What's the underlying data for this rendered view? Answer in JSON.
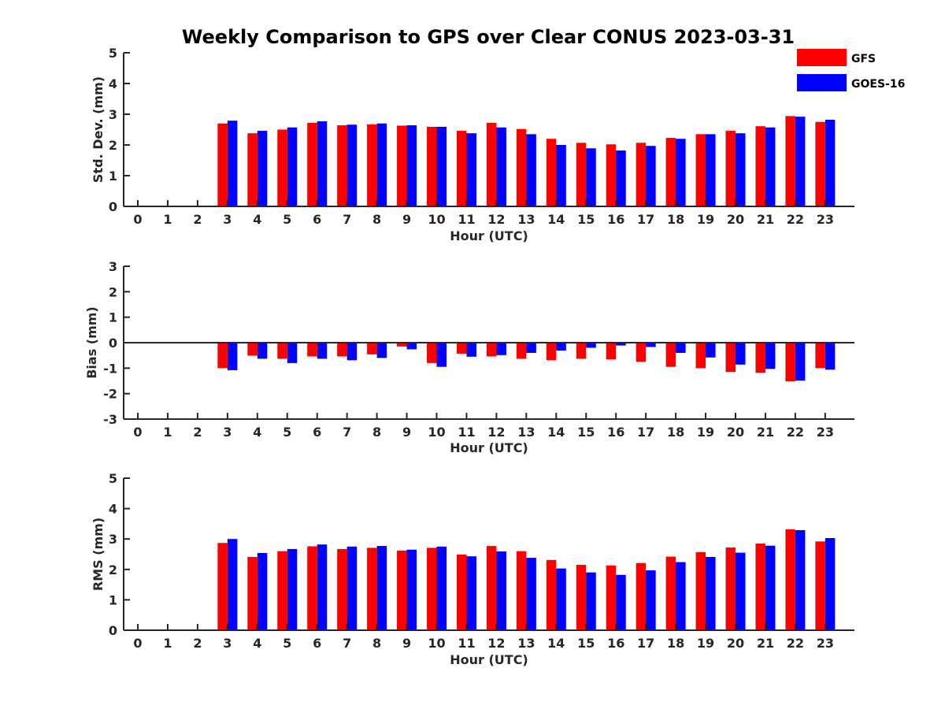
{
  "figure": {
    "title": "Weekly Comparison to GPS over Clear CONUS 2023-03-31"
  },
  "colors": {
    "gfs": "#ff0000",
    "goes": "#0000ff",
    "axis": "#262626"
  },
  "legend": {
    "placement": "top-right",
    "entries": [
      "GFS",
      "GOES-16"
    ]
  },
  "chart_data": [
    {
      "type": "bar",
      "panel": "std",
      "xlabel": "Hour (UTC)",
      "ylabel": "Std. Dev. (mm)",
      "ylim": [
        0,
        5
      ],
      "yticks": [
        0,
        1,
        2,
        3,
        4,
        5
      ],
      "categories": [
        0,
        1,
        2,
        3,
        4,
        5,
        6,
        7,
        8,
        9,
        10,
        11,
        12,
        13,
        14,
        15,
        16,
        17,
        18,
        19,
        20,
        21,
        22,
        23
      ],
      "zero_line": false,
      "series": [
        {
          "name": "GFS",
          "color": "#ff0000",
          "values": [
            null,
            null,
            null,
            2.7,
            2.38,
            2.5,
            2.72,
            2.64,
            2.67,
            2.63,
            2.59,
            2.46,
            2.72,
            2.52,
            2.2,
            2.07,
            2.02,
            2.07,
            2.23,
            2.35,
            2.46,
            2.61,
            2.94,
            2.75
          ]
        },
        {
          "name": "GOES-16",
          "color": "#0000ff",
          "values": [
            null,
            null,
            null,
            2.79,
            2.46,
            2.57,
            2.77,
            2.66,
            2.7,
            2.64,
            2.59,
            2.38,
            2.57,
            2.35,
            2.0,
            1.89,
            1.82,
            1.97,
            2.2,
            2.35,
            2.38,
            2.57,
            2.92,
            2.82
          ]
        }
      ]
    },
    {
      "type": "bar",
      "panel": "bias",
      "xlabel": "Hour (UTC)",
      "ylabel": "Bias (mm)",
      "ylim": [
        -3,
        3
      ],
      "yticks": [
        -3,
        -2,
        -1,
        0,
        1,
        2,
        3
      ],
      "categories": [
        0,
        1,
        2,
        3,
        4,
        5,
        6,
        7,
        8,
        9,
        10,
        11,
        12,
        13,
        14,
        15,
        16,
        17,
        18,
        19,
        20,
        21,
        22,
        23
      ],
      "zero_line": true,
      "series": [
        {
          "name": "GFS",
          "color": "#ff0000",
          "values": [
            null,
            null,
            null,
            -1.0,
            -0.51,
            -0.63,
            -0.54,
            -0.54,
            -0.46,
            -0.15,
            -0.8,
            -0.43,
            -0.54,
            -0.63,
            -0.69,
            -0.63,
            -0.66,
            -0.75,
            -0.95,
            -1.0,
            -1.15,
            -1.18,
            -1.52,
            -1.0
          ]
        },
        {
          "name": "GOES-16",
          "color": "#0000ff",
          "values": [
            null,
            null,
            null,
            -1.08,
            -0.63,
            -0.8,
            -0.63,
            -0.69,
            -0.6,
            -0.26,
            -0.95,
            -0.55,
            -0.49,
            -0.4,
            -0.31,
            -0.2,
            -0.11,
            -0.17,
            -0.4,
            -0.58,
            -0.86,
            -1.03,
            -1.49,
            -1.06
          ]
        }
      ]
    },
    {
      "type": "bar",
      "panel": "rms",
      "xlabel": "Hour (UTC)",
      "ylabel": "RMS (mm)",
      "ylim": [
        0,
        5
      ],
      "yticks": [
        0,
        1,
        2,
        3,
        4,
        5
      ],
      "categories": [
        0,
        1,
        2,
        3,
        4,
        5,
        6,
        7,
        8,
        9,
        10,
        11,
        12,
        13,
        14,
        15,
        16,
        17,
        18,
        19,
        20,
        21,
        22,
        23
      ],
      "zero_line": false,
      "series": [
        {
          "name": "GFS",
          "color": "#ff0000",
          "values": [
            null,
            null,
            null,
            2.87,
            2.41,
            2.6,
            2.76,
            2.67,
            2.71,
            2.62,
            2.71,
            2.49,
            2.77,
            2.6,
            2.31,
            2.15,
            2.13,
            2.21,
            2.42,
            2.57,
            2.72,
            2.85,
            3.32,
            2.92
          ]
        },
        {
          "name": "GOES-16",
          "color": "#0000ff",
          "values": [
            null,
            null,
            null,
            3.0,
            2.54,
            2.67,
            2.82,
            2.75,
            2.77,
            2.65,
            2.75,
            2.43,
            2.59,
            2.38,
            2.03,
            1.9,
            1.82,
            1.97,
            2.24,
            2.41,
            2.55,
            2.78,
            3.29,
            3.03
          ]
        }
      ]
    }
  ]
}
